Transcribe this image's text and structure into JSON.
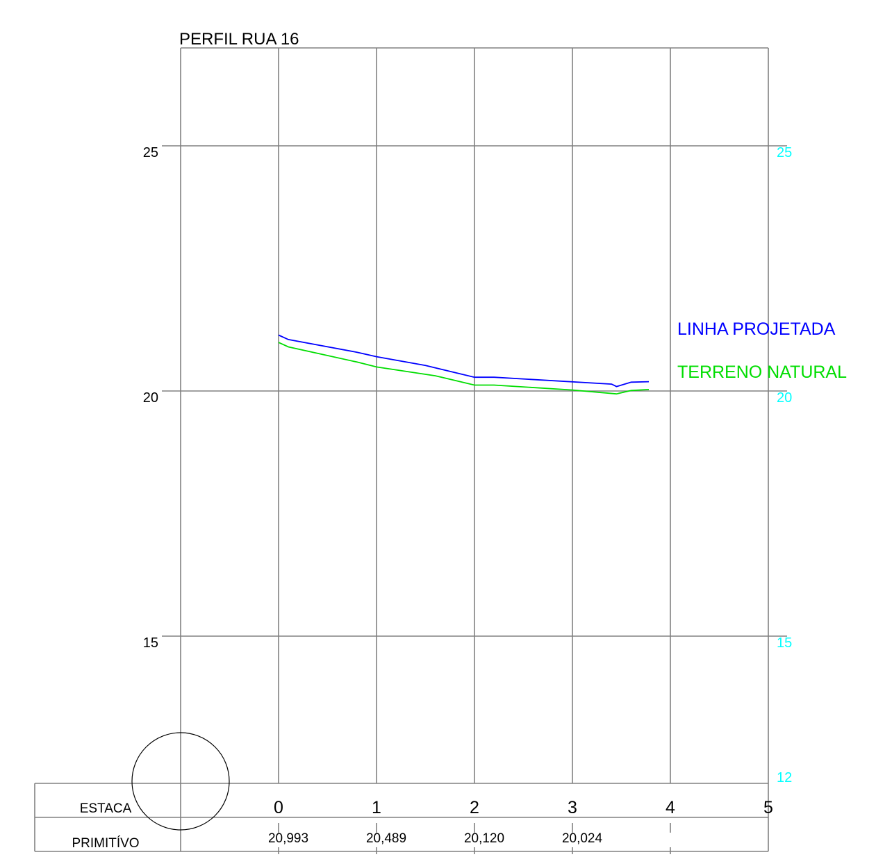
{
  "chart_data": {
    "type": "line",
    "title": "PERFIL RUA 16",
    "xlabel": "",
    "ylabel": "",
    "x_ticks": [
      "0",
      "1",
      "2",
      "3",
      "4",
      "5"
    ],
    "y_ticks_left": [
      "25",
      "20",
      "15"
    ],
    "y_ticks_right": [
      "25",
      "20",
      "15",
      "12"
    ],
    "xlim": [
      -1,
      5
    ],
    "ylim": [
      12,
      27
    ],
    "grid": true,
    "legend_position": "right",
    "table": {
      "row_labels": [
        "ESTACA",
        "PRIMITÍVO"
      ],
      "primitivo_values": [
        "20,993",
        "20,489",
        "20,120",
        "20,024"
      ]
    },
    "series": [
      {
        "name": "LINHA PROJETADA",
        "color": "#0000ff",
        "points": [
          [
            0,
            21.14
          ],
          [
            0.1,
            21.05
          ],
          [
            0.8,
            20.79
          ],
          [
            1.0,
            20.7
          ],
          [
            1.5,
            20.52
          ],
          [
            2.0,
            20.28
          ],
          [
            2.2,
            20.28
          ],
          [
            3.4,
            20.14
          ],
          [
            3.45,
            20.09
          ],
          [
            3.6,
            20.18
          ],
          [
            3.78,
            20.19
          ]
        ]
      },
      {
        "name": "TERRENO NATURAL",
        "color": "#00dd00",
        "points": [
          [
            0,
            20.99
          ],
          [
            0.1,
            20.9
          ],
          [
            0.8,
            20.59
          ],
          [
            1.0,
            20.49
          ],
          [
            1.6,
            20.31
          ],
          [
            2.0,
            20.12
          ],
          [
            2.2,
            20.12
          ],
          [
            3.0,
            20.02
          ],
          [
            3.45,
            19.94
          ],
          [
            3.6,
            20.01
          ],
          [
            3.78,
            20.03
          ]
        ]
      }
    ]
  },
  "colors": {
    "grid": "#808080",
    "text": "#000000",
    "right_axis": "#00ffff"
  }
}
